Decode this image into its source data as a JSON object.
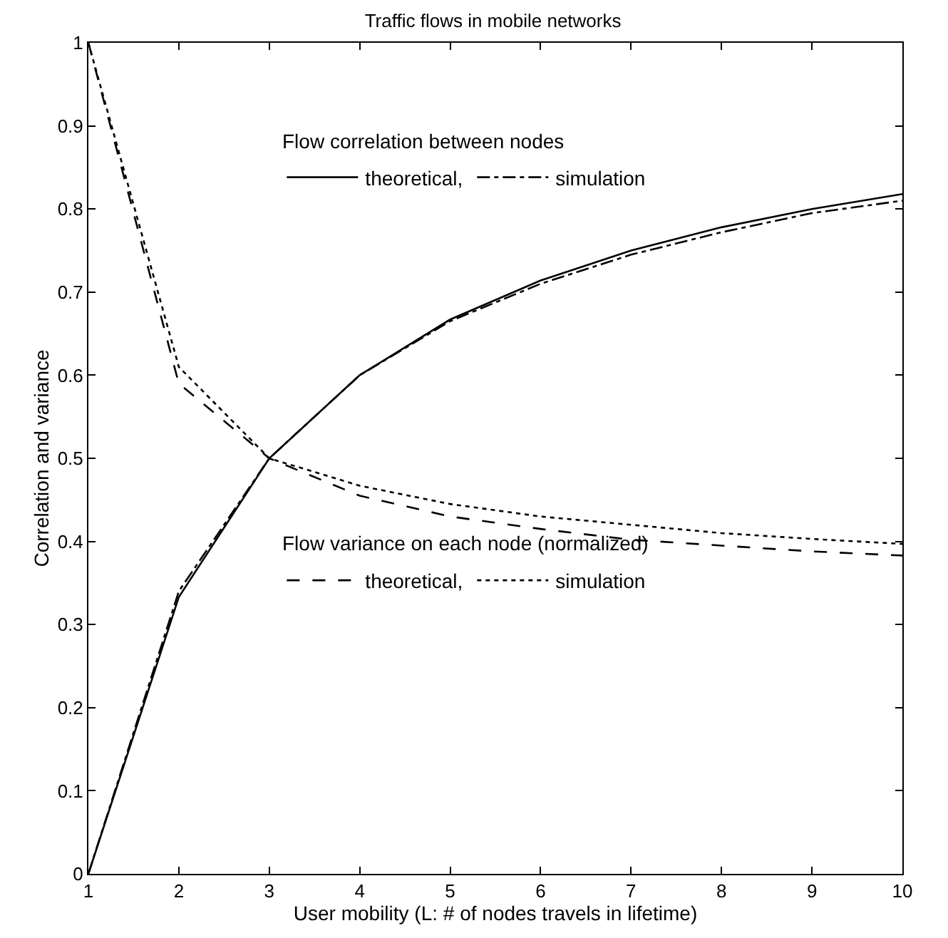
{
  "chart_data": {
    "type": "line",
    "title": "Traffic flows in mobile networks",
    "xlabel": "User mobility (L: # of nodes travels in lifetime)",
    "ylabel": "Correlation and variance",
    "x": [
      1,
      2,
      3,
      4,
      5,
      6,
      7,
      8,
      9,
      10
    ],
    "series": [
      {
        "name": "theoretical,",
        "color": "#000000",
        "line_style": "solid",
        "values": [
          0,
          0.333,
          0.5,
          0.6,
          0.667,
          0.714,
          0.75,
          0.778,
          0.8,
          0.818
        ]
      },
      {
        "name": "simulation",
        "color": "#000000",
        "line_style": "dashdot",
        "values": [
          0,
          0.34,
          0.5,
          0.6,
          0.665,
          0.71,
          0.745,
          0.772,
          0.795,
          0.81
        ]
      },
      {
        "name": "theoretical,",
        "color": "#000000",
        "line_style": "dashed",
        "values": [
          1,
          0.59,
          0.5,
          0.455,
          0.43,
          0.415,
          0.402,
          0.395,
          0.388,
          0.383
        ]
      },
      {
        "name": "simulation",
        "color": "#000000",
        "line_style": "dotted",
        "values": [
          1,
          0.61,
          0.5,
          0.467,
          0.445,
          0.43,
          0.42,
          0.41,
          0.403,
          0.397
        ]
      }
    ],
    "annotations": [
      "Flow correlation between nodes",
      "Flow variance on each node (normalized)"
    ],
    "xlim": [
      1,
      10
    ],
    "xticks": [
      1,
      2,
      3,
      4,
      5,
      6,
      7,
      8,
      9,
      10
    ],
    "ylim": [
      0,
      1
    ],
    "yticks": [
      0,
      0.1,
      0.2,
      0.3,
      0.4,
      0.5,
      0.6,
      0.7,
      0.8,
      0.9,
      1
    ],
    "legend": "top left",
    "marker": "none"
  }
}
